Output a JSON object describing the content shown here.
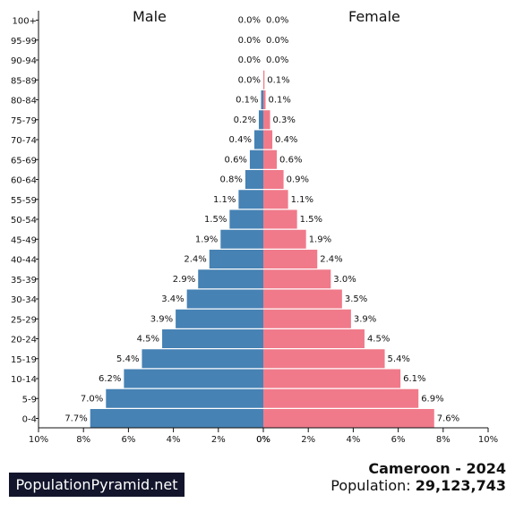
{
  "chart_data": {
    "type": "bar",
    "orientation": "horizontal",
    "layout": "population-pyramid",
    "left_title": "Male",
    "right_title": "Female",
    "categories": [
      "100+",
      "95-99",
      "90-94",
      "85-89",
      "80-84",
      "75-79",
      "70-74",
      "65-69",
      "60-64",
      "55-59",
      "50-54",
      "45-49",
      "40-44",
      "35-39",
      "30-34",
      "25-29",
      "20-24",
      "15-19",
      "10-14",
      "5-9",
      "0-4"
    ],
    "series": [
      {
        "name": "Male",
        "color": "#4682b4",
        "values": [
          0.0,
          0.0,
          0.0,
          0.0,
          0.1,
          0.2,
          0.4,
          0.6,
          0.8,
          1.1,
          1.5,
          1.9,
          2.4,
          2.9,
          3.4,
          3.9,
          4.5,
          5.4,
          6.2,
          7.0,
          7.7
        ],
        "labels": [
          "0.0%",
          "0.0%",
          "0.0%",
          "0.0%",
          "0.1%",
          "0.2%",
          "0.4%",
          "0.6%",
          "0.8%",
          "1.1%",
          "1.5%",
          "1.9%",
          "2.4%",
          "2.9%",
          "3.4%",
          "3.9%",
          "4.5%",
          "5.4%",
          "6.2%",
          "7.0%",
          "7.7%"
        ]
      },
      {
        "name": "Female",
        "color": "#f07a8a",
        "values": [
          0.0,
          0.0,
          0.0,
          0.05,
          0.1,
          0.3,
          0.4,
          0.6,
          0.9,
          1.1,
          1.5,
          1.9,
          2.4,
          3.0,
          3.5,
          3.9,
          4.5,
          5.4,
          6.1,
          6.9,
          7.6
        ],
        "labels": [
          "0.0%",
          "0.0%",
          "0.0%",
          "0.1%",
          "0.1%",
          "0.3%",
          "0.4%",
          "0.6%",
          "0.9%",
          "1.1%",
          "1.5%",
          "1.9%",
          "2.4%",
          "3.0%",
          "3.5%",
          "3.9%",
          "4.5%",
          "5.4%",
          "6.1%",
          "6.9%",
          "7.6%"
        ]
      }
    ],
    "x_ticks_left": [
      "10%",
      "8%",
      "6%",
      "4%",
      "2%",
      "0%"
    ],
    "x_ticks_right": [
      "0%",
      "2%",
      "4%",
      "6%",
      "8%",
      "10%"
    ],
    "xlim": [
      0,
      10
    ]
  },
  "footer": {
    "brand": "PopulationPyramid.net",
    "country_year": "Cameroon - 2024",
    "population_label": "Population: ",
    "population_value": "29,123,743"
  }
}
